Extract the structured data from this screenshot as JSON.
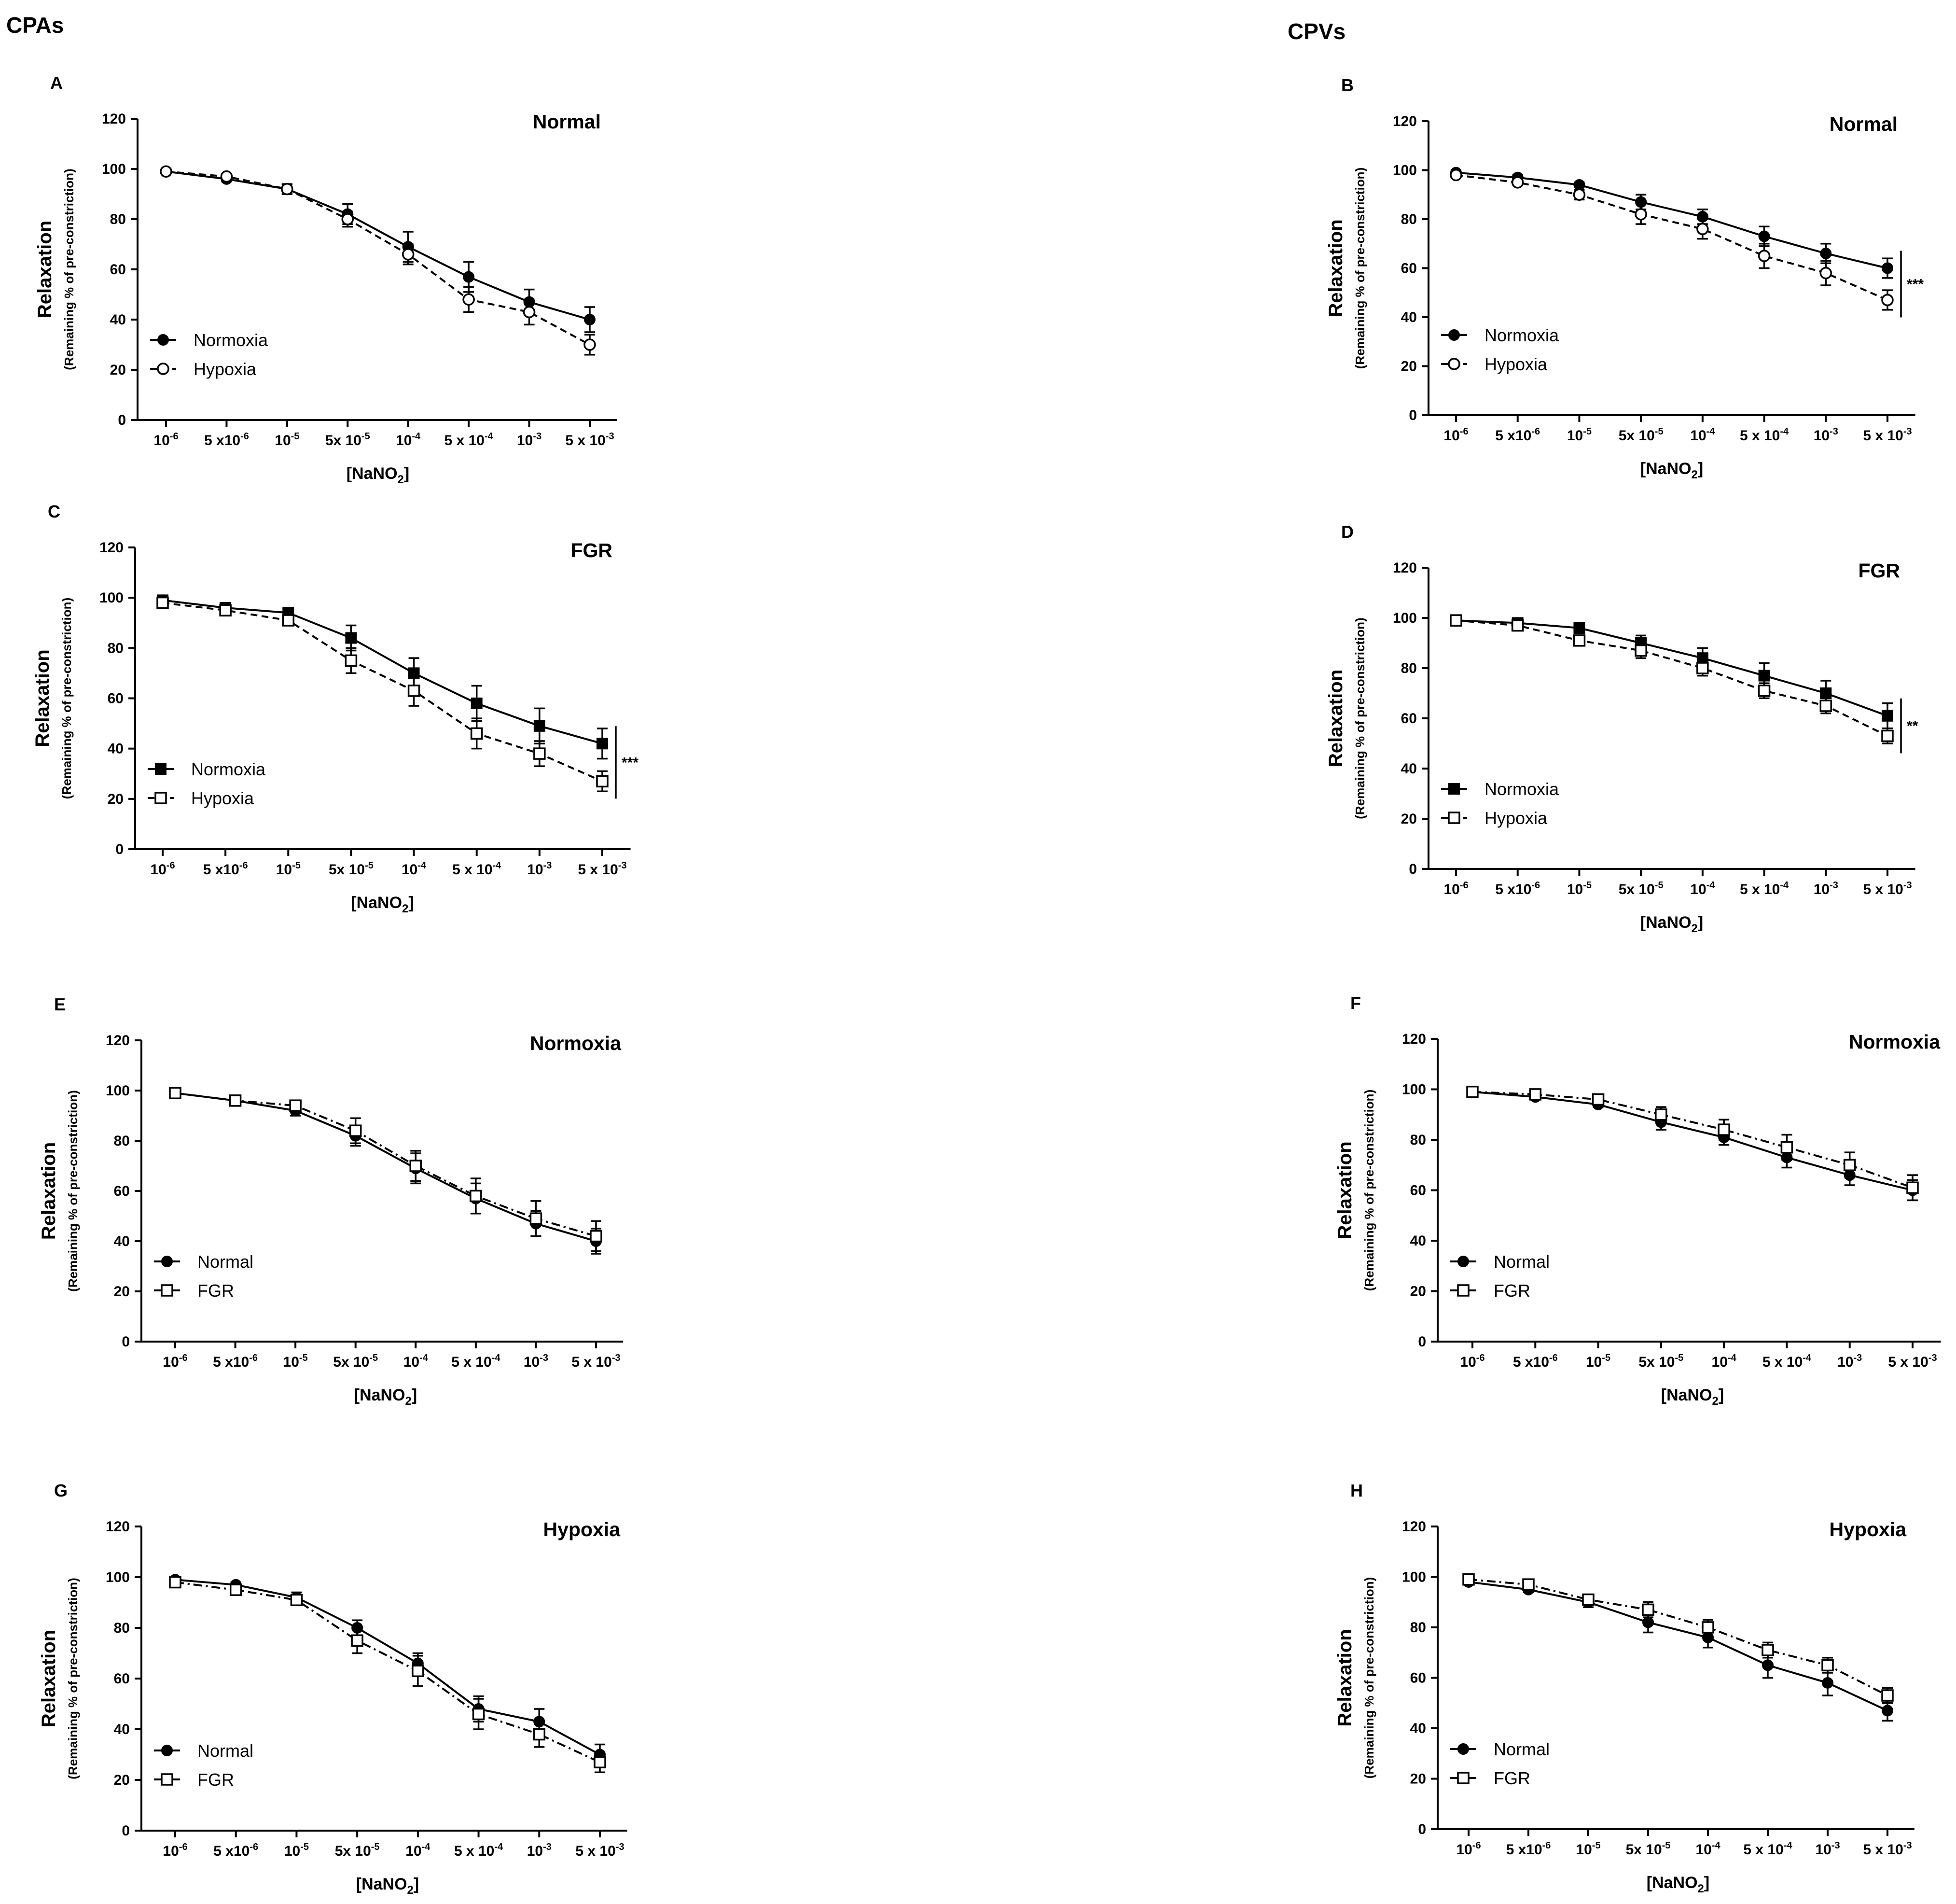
{
  "headers": {
    "left": "CPAs",
    "right": "CPVs"
  },
  "chart_data": [
    {
      "panel": "A",
      "type": "line",
      "title": "Normal",
      "xlabel": [
        "[NaNO",
        "2",
        "]"
      ],
      "ylabel": "Relaxation",
      "ylabel_sub": "(Remaining % of pre-constriction)",
      "categories": [
        [
          "10",
          "-6"
        ],
        [
          "5 x10",
          "-6"
        ],
        [
          "10",
          "-5"
        ],
        [
          "5x 10",
          "-5"
        ],
        [
          "10",
          "-4"
        ],
        [
          "5 x 10",
          "-4"
        ],
        [
          "10",
          "-3"
        ],
        [
          "5 x 10",
          "-3"
        ]
      ],
      "ylim": [
        0,
        120
      ],
      "yticks": [
        0,
        20,
        40,
        60,
        80,
        100,
        120
      ],
      "series": [
        {
          "name": "Normoxia",
          "marker": "circle-filled",
          "line": "solid",
          "color": "#000000",
          "values": [
            99,
            96,
            92,
            82,
            69,
            57,
            47,
            40
          ],
          "errors": [
            1,
            1,
            2,
            4,
            6,
            6,
            5,
            5
          ]
        },
        {
          "name": "Hypoxia",
          "marker": "circle-open",
          "line": "dashed",
          "color": "#000000",
          "values": [
            99,
            97,
            92,
            80,
            66,
            48,
            43,
            30
          ],
          "errors": [
            1,
            1,
            2,
            3,
            4,
            5,
            5,
            4
          ]
        }
      ]
    },
    {
      "panel": "B",
      "type": "line",
      "title": "Normal",
      "xlabel": [
        "[NaNO",
        "2",
        "]"
      ],
      "ylabel": "Relaxation",
      "ylabel_sub": "(Remaining % of pre-constriction)",
      "categories": [
        [
          "10",
          "-6"
        ],
        [
          "5 x10",
          "-6"
        ],
        [
          "10",
          "-5"
        ],
        [
          "5x 10",
          "-5"
        ],
        [
          "10",
          "-4"
        ],
        [
          "5 x 10",
          "-4"
        ],
        [
          "10",
          "-3"
        ],
        [
          "5 x 10",
          "-3"
        ]
      ],
      "ylim": [
        0,
        120
      ],
      "yticks": [
        0,
        20,
        40,
        60,
        80,
        100,
        120
      ],
      "significance": "***",
      "series": [
        {
          "name": "Normoxia",
          "marker": "circle-filled",
          "line": "solid",
          "color": "#000000",
          "values": [
            99,
            97,
            94,
            87,
            81,
            73,
            66,
            60
          ],
          "errors": [
            1,
            1,
            1,
            3,
            3,
            4,
            4,
            4
          ]
        },
        {
          "name": "Hypoxia",
          "marker": "circle-open",
          "line": "dashed",
          "color": "#000000",
          "values": [
            98,
            95,
            90,
            82,
            76,
            65,
            58,
            47
          ],
          "errors": [
            1,
            1,
            2,
            4,
            4,
            5,
            5,
            4
          ]
        }
      ]
    },
    {
      "panel": "C",
      "type": "line",
      "title": "FGR",
      "xlabel": [
        "[NaNO",
        "2",
        "]"
      ],
      "ylabel": "Relaxation",
      "ylabel_sub": "(Remaining % of pre-constriction)",
      "categories": [
        [
          "10",
          "-6"
        ],
        [
          "5 x10",
          "-6"
        ],
        [
          "10",
          "-5"
        ],
        [
          "5x 10",
          "-5"
        ],
        [
          "10",
          "-4"
        ],
        [
          "5 x 10",
          "-4"
        ],
        [
          "10",
          "-3"
        ],
        [
          "5 x 10",
          "-3"
        ]
      ],
      "ylim": [
        0,
        120
      ],
      "yticks": [
        0,
        20,
        40,
        60,
        80,
        100,
        120
      ],
      "significance": "***",
      "series": [
        {
          "name": "Normoxia",
          "marker": "square-filled",
          "line": "solid",
          "color": "#000000",
          "values": [
            99,
            96,
            94,
            84,
            70,
            58,
            49,
            42
          ],
          "errors": [
            1,
            1,
            2,
            5,
            6,
            7,
            7,
            6
          ]
        },
        {
          "name": "Hypoxia",
          "marker": "square-open",
          "line": "dashed",
          "color": "#000000",
          "values": [
            98,
            95,
            91,
            75,
            63,
            46,
            38,
            27
          ],
          "errors": [
            1,
            1,
            2,
            5,
            6,
            6,
            5,
            4
          ]
        }
      ]
    },
    {
      "panel": "D",
      "type": "line",
      "title": "FGR",
      "xlabel": [
        "[NaNO",
        "2",
        "]"
      ],
      "ylabel": "Relaxation",
      "ylabel_sub": "(Remaining % of pre-constriction)",
      "categories": [
        [
          "10",
          "-6"
        ],
        [
          "5 x10",
          "-6"
        ],
        [
          "10",
          "-5"
        ],
        [
          "5x 10",
          "-5"
        ],
        [
          "10",
          "-4"
        ],
        [
          "5 x 10",
          "-4"
        ],
        [
          "10",
          "-3"
        ],
        [
          "5 x 10",
          "-3"
        ]
      ],
      "ylim": [
        0,
        120
      ],
      "yticks": [
        0,
        20,
        40,
        60,
        80,
        100,
        120
      ],
      "significance": "**",
      "series": [
        {
          "name": "Normoxia",
          "marker": "square-filled",
          "line": "solid",
          "color": "#000000",
          "values": [
            99,
            98,
            96,
            90,
            84,
            77,
            70,
            61
          ],
          "errors": [
            1,
            1,
            2,
            3,
            4,
            5,
            5,
            5
          ]
        },
        {
          "name": "Hypoxia",
          "marker": "square-open",
          "line": "dashed",
          "color": "#000000",
          "values": [
            99,
            97,
            91,
            87,
            80,
            71,
            65,
            53
          ],
          "errors": [
            1,
            1,
            2,
            3,
            3,
            3,
            3,
            3
          ]
        }
      ]
    },
    {
      "panel": "E",
      "type": "line",
      "title": "Normoxia",
      "xlabel": [
        "[NaNO",
        "2",
        "]"
      ],
      "ylabel": "Relaxation",
      "ylabel_sub": "(Remaining % of pre-constriction)",
      "categories": [
        [
          "10",
          "-6"
        ],
        [
          "5 x10",
          "-6"
        ],
        [
          "10",
          "-5"
        ],
        [
          "5x 10",
          "-5"
        ],
        [
          "10",
          "-4"
        ],
        [
          "5 x 10",
          "-4"
        ],
        [
          "10",
          "-3"
        ],
        [
          "5 x 10",
          "-3"
        ]
      ],
      "ylim": [
        0,
        120
      ],
      "yticks": [
        0,
        20,
        40,
        60,
        80,
        100,
        120
      ],
      "series": [
        {
          "name": "Normal",
          "marker": "circle-filled",
          "line": "solid",
          "color": "#000000",
          "values": [
            99,
            96,
            92,
            82,
            69,
            57,
            47,
            40
          ],
          "errors": [
            1,
            1,
            2,
            4,
            6,
            6,
            5,
            5
          ]
        },
        {
          "name": "FGR",
          "marker": "square-open",
          "line": "dashdot",
          "color": "#000000",
          "values": [
            99,
            96,
            94,
            84,
            70,
            58,
            49,
            42
          ],
          "errors": [
            1,
            1,
            2,
            5,
            6,
            7,
            7,
            6
          ]
        }
      ]
    },
    {
      "panel": "F",
      "type": "line",
      "title": "Normoxia",
      "xlabel": [
        "[NaNO",
        "2",
        "]"
      ],
      "ylabel": "Relaxation",
      "ylabel_sub": "(Remaining % of pre-constriction)",
      "categories": [
        [
          "10",
          "-6"
        ],
        [
          "5 x10",
          "-6"
        ],
        [
          "10",
          "-5"
        ],
        [
          "5x 10",
          "-5"
        ],
        [
          "10",
          "-4"
        ],
        [
          "5 x 10",
          "-4"
        ],
        [
          "10",
          "-3"
        ],
        [
          "5 x 10",
          "-3"
        ]
      ],
      "ylim": [
        0,
        120
      ],
      "yticks": [
        0,
        20,
        40,
        60,
        80,
        100,
        120
      ],
      "series": [
        {
          "name": "Normal",
          "marker": "circle-filled",
          "line": "solid",
          "color": "#000000",
          "values": [
            99,
            97,
            94,
            87,
            81,
            73,
            66,
            60
          ],
          "errors": [
            1,
            1,
            1,
            3,
            3,
            4,
            4,
            4
          ]
        },
        {
          "name": "FGR",
          "marker": "square-open",
          "line": "dashdot",
          "color": "#000000",
          "values": [
            99,
            98,
            96,
            90,
            84,
            77,
            70,
            61
          ],
          "errors": [
            1,
            1,
            2,
            3,
            4,
            5,
            5,
            5
          ]
        }
      ]
    },
    {
      "panel": "G",
      "type": "line",
      "title": "Hypoxia",
      "xlabel": [
        "[NaNO",
        "2",
        "]"
      ],
      "ylabel": "Relaxation",
      "ylabel_sub": "(Remaining % of pre-constriction)",
      "categories": [
        [
          "10",
          "-6"
        ],
        [
          "5 x10",
          "-6"
        ],
        [
          "10",
          "-5"
        ],
        [
          "5x 10",
          "-5"
        ],
        [
          "10",
          "-4"
        ],
        [
          "5 x 10",
          "-4"
        ],
        [
          "10",
          "-3"
        ],
        [
          "5 x 10",
          "-3"
        ]
      ],
      "ylim": [
        0,
        120
      ],
      "yticks": [
        0,
        20,
        40,
        60,
        80,
        100,
        120
      ],
      "series": [
        {
          "name": "Normal",
          "marker": "circle-filled",
          "line": "solid",
          "color": "#000000",
          "values": [
            99,
            97,
            92,
            80,
            66,
            48,
            43,
            30
          ],
          "errors": [
            1,
            1,
            2,
            3,
            4,
            5,
            5,
            4
          ]
        },
        {
          "name": "FGR",
          "marker": "square-open",
          "line": "dashdot",
          "color": "#000000",
          "values": [
            98,
            95,
            91,
            75,
            63,
            46,
            38,
            27
          ],
          "errors": [
            1,
            1,
            2,
            5,
            6,
            6,
            5,
            4
          ]
        }
      ]
    },
    {
      "panel": "H",
      "type": "line",
      "title": "Hypoxia",
      "xlabel": [
        "[NaNO",
        "2",
        "]"
      ],
      "ylabel": "Relaxation",
      "ylabel_sub": "(Remaining % of pre-constriction)",
      "categories": [
        [
          "10",
          "-6"
        ],
        [
          "5 x10",
          "-6"
        ],
        [
          "10",
          "-5"
        ],
        [
          "5x 10",
          "-5"
        ],
        [
          "10",
          "-4"
        ],
        [
          "5 x 10",
          "-4"
        ],
        [
          "10",
          "-3"
        ],
        [
          "5 x 10",
          "-3"
        ]
      ],
      "ylim": [
        0,
        120
      ],
      "yticks": [
        0,
        20,
        40,
        60,
        80,
        100,
        120
      ],
      "series": [
        {
          "name": "Normal",
          "marker": "circle-filled",
          "line": "solid",
          "color": "#000000",
          "values": [
            98,
            95,
            90,
            82,
            76,
            65,
            58,
            47
          ],
          "errors": [
            1,
            1,
            2,
            4,
            4,
            5,
            5,
            4
          ]
        },
        {
          "name": "FGR",
          "marker": "square-open",
          "line": "dashdot",
          "color": "#000000",
          "values": [
            99,
            97,
            91,
            87,
            80,
            71,
            65,
            53
          ],
          "errors": [
            1,
            1,
            2,
            3,
            3,
            3,
            3,
            3
          ]
        }
      ]
    }
  ]
}
